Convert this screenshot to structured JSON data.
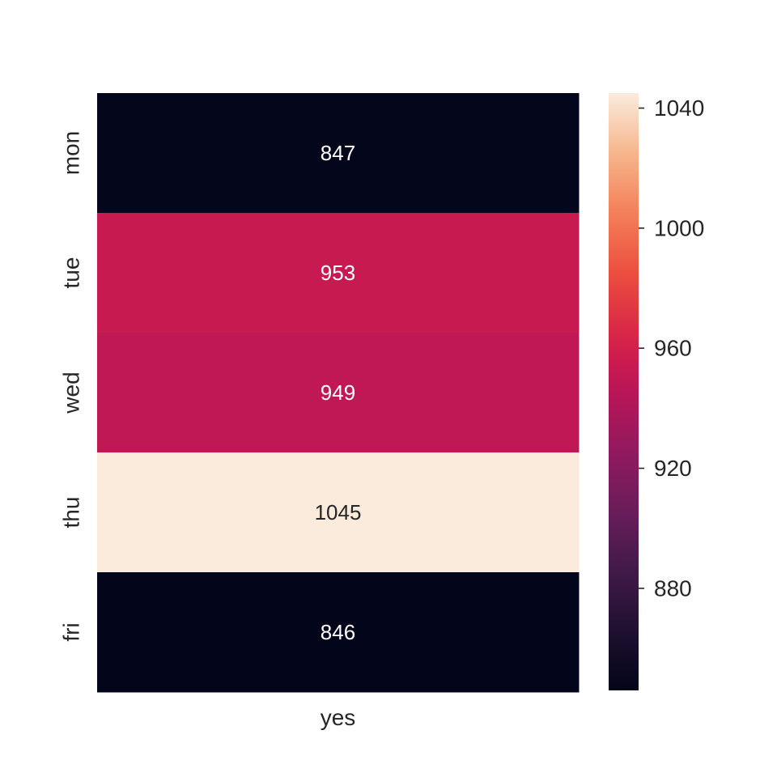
{
  "chart_data": {
    "type": "heatmap",
    "rows": [
      "mon",
      "tue",
      "wed",
      "thu",
      "fri"
    ],
    "columns": [
      "yes"
    ],
    "values": [
      [
        847
      ],
      [
        953
      ],
      [
        949
      ],
      [
        1045
      ],
      [
        846
      ]
    ],
    "colormap": "rocket",
    "color_range": [
      846,
      1045
    ],
    "colorbar": {
      "ticks": [
        880,
        920,
        960,
        1000,
        1040
      ],
      "tick_labels": [
        "880",
        "920",
        "960",
        "1000",
        "1040"
      ],
      "placement": "right"
    },
    "annotations": true,
    "grid": false
  }
}
